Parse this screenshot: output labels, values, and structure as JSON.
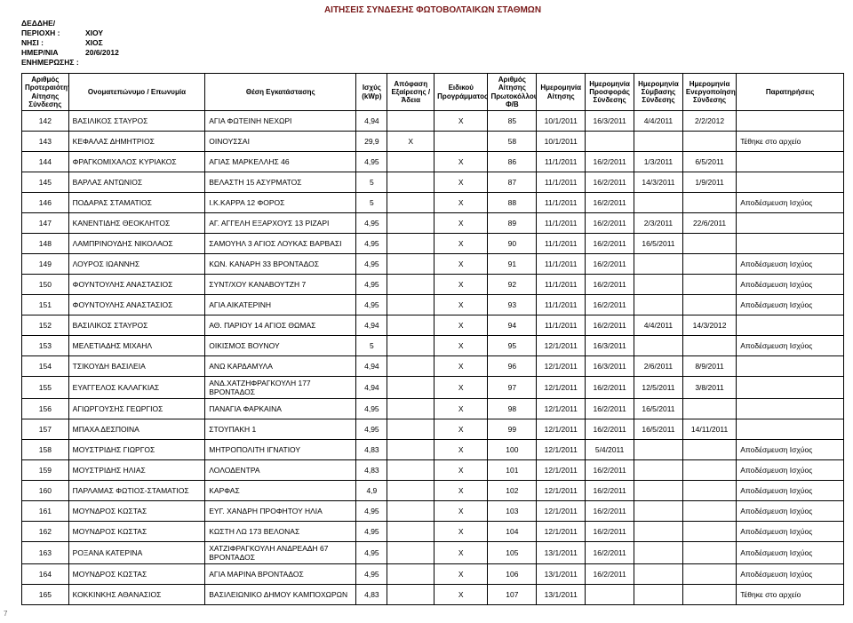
{
  "title": "ΑΙΤΗΣΕΙΣ ΣΥΝΔΕΣΗΣ ΦΩΤΟΒΟΛΤΑΙΚΩΝ ΣΤΑΘΜΩΝ",
  "meta": {
    "org_label": "ΔΕΔΔΗΕ/",
    "region_label": "ΠΕΡΙΟΧΗ :",
    "region_value": "ΧΙΟΥ",
    "island_label": "ΝΗΣΙ :",
    "island_value": "ΧΙΟΣ",
    "date_label": "ΗΜΕΡ/ΝΙΑ ΕΝΗΜΕΡΩΣΗΣ :",
    "date_value": "20/6/2012"
  },
  "headers": {
    "id": "Αριθμός Προτεραιότητας Αίτησης Σύνδεσης",
    "name": "Ονοματεπώνυμο / Επωνυμία",
    "loc": "Θέση Εγκατάστασης",
    "kwp": "Ισχύς (kWp)",
    "exc": "Απόφαση Εξαίρεσης / Άδεια",
    "prog": "Ειδικού Προγράμματος",
    "prot": "Αριθμός Αίτησης Πρωτοκόλλου Φ/Β",
    "d1": "Ημερομηνία Αίτησης",
    "d2": "Ημερομηνία Προσφοράς Σύνδεσης",
    "d3": "Ημερομηνία Σύμβασης Σύνδεσης",
    "d4": "Ημερομηνία Ενεργοποίησης Σύνδεσης",
    "note": "Παρατηρήσεις"
  },
  "rows": [
    {
      "id": "142",
      "name": "ΒΑΣΙΛΙΚΟΣ ΣΤΑΥΡΟΣ",
      "loc": "ΑΓΙΑ ΦΩΤΕΙΝΗ ΝΕΧΩΡΙ",
      "kwp": "4,94",
      "exc": "",
      "prog": "X",
      "prot": "85",
      "d1": "10/1/2011",
      "d2": "16/3/2011",
      "d3": "4/4/2011",
      "d4": "2/2/2012",
      "note": ""
    },
    {
      "id": "143",
      "name": "ΚΕΦΑΛΑΣ ΔΗΜΗΤΡΙΟΣ",
      "loc": "ΟΙΝΟΥΣΣΑΙ",
      "kwp": "29,9",
      "exc": "X",
      "prog": "",
      "prot": "58",
      "d1": "10/1/2011",
      "d2": "",
      "d3": "",
      "d4": "",
      "note": "Τέθηκε στο αρχείο"
    },
    {
      "id": "144",
      "name": "ΦΡΑΓΚΟΜΙΧΑΛΟΣ ΚΥΡΙΑΚΟΣ",
      "loc": "ΑΓΙΑΣ ΜΑΡΚΕΛΛΗΣ 46",
      "kwp": "4,95",
      "exc": "",
      "prog": "X",
      "prot": "86",
      "d1": "11/1/2011",
      "d2": "16/2/2011",
      "d3": "1/3/2011",
      "d4": "6/5/2011",
      "note": ""
    },
    {
      "id": "145",
      "name": "ΒΑΡΛΑΣ ΑΝΤΩΝΙΟΣ",
      "loc": "ΒΕΛΑΣΤΗ 15 ΑΣΥΡΜΑΤΟΣ",
      "kwp": "5",
      "exc": "",
      "prog": "X",
      "prot": "87",
      "d1": "11/1/2011",
      "d2": "16/2/2011",
      "d3": "14/3/2011",
      "d4": "1/9/2011",
      "note": ""
    },
    {
      "id": "146",
      "name": "ΠΟΔΑΡΑΣ ΣΤΑΜΑΤΙΟΣ",
      "loc": "Ι.Κ.ΚΑΡΡΑ 12 ΦΟΡΟΣ",
      "kwp": "5",
      "exc": "",
      "prog": "X",
      "prot": "88",
      "d1": "11/1/2011",
      "d2": "16/2/2011",
      "d3": "",
      "d4": "",
      "note": "Αποδέσμευση Ισχύος"
    },
    {
      "id": "147",
      "name": "ΚΑΝΕΝΤΙΔΗΣ ΘΕΟΚΛΗΤΟΣ",
      "loc": "ΑΓ. ΑΓΓΕΛΗ ΕΞΑΡΧΟΥΣ 13 ΡΙΖΑΡΙ",
      "kwp": "4,95",
      "exc": "",
      "prog": "X",
      "prot": "89",
      "d1": "11/1/2011",
      "d2": "16/2/2011",
      "d3": "2/3/2011",
      "d4": "22/6/2011",
      "note": ""
    },
    {
      "id": "148",
      "name": "ΛΑΜΠΡΙΝΟΥΔΗΣ ΝΙΚΟΛΑΟΣ",
      "loc": "ΣΑΜΟΥΗΛ 3 ΑΓΙΟΣ ΛΟΥΚΑΣ ΒΑΡΒΑΣΙ",
      "kwp": "4,95",
      "exc": "",
      "prog": "X",
      "prot": "90",
      "d1": "11/1/2011",
      "d2": "16/2/2011",
      "d3": "16/5/2011",
      "d4": "",
      "note": ""
    },
    {
      "id": "149",
      "name": "ΛΟΥΡΟΣ ΙΩΑΝΝΗΣ",
      "loc": "ΚΩΝ. ΚΑΝΑΡΗ 33 ΒΡΟΝΤΑΔΟΣ",
      "kwp": "4,95",
      "exc": "",
      "prog": "X",
      "prot": "91",
      "d1": "11/1/2011",
      "d2": "16/2/2011",
      "d3": "",
      "d4": "",
      "note": "Αποδέσμευση Ισχύος"
    },
    {
      "id": "150",
      "name": "ΦΟΥΝΤΟΥΛΗΣ ΑΝΑΣΤΑΣΙΟΣ",
      "loc": "ΣΥΝΤ/ΧΟΥ ΚΑΝΑΒΟΥΤΖΗ 7",
      "kwp": "4,95",
      "exc": "",
      "prog": "X",
      "prot": "92",
      "d1": "11/1/2011",
      "d2": "16/2/2011",
      "d3": "",
      "d4": "",
      "note": "Αποδέσμευση Ισχύος"
    },
    {
      "id": "151",
      "name": "ΦΟΥΝΤΟΥΛΗΣ ΑΝΑΣΤΑΣΙΟΣ",
      "loc": "ΑΓΙΑ ΑΙΚΑΤΕΡΙΝΗ",
      "kwp": "4,95",
      "exc": "",
      "prog": "X",
      "prot": "93",
      "d1": "11/1/2011",
      "d2": "16/2/2011",
      "d3": "",
      "d4": "",
      "note": "Αποδέσμευση Ισχύος"
    },
    {
      "id": "152",
      "name": "ΒΑΣΙΛΙΚΟΣ ΣΤΑΥΡΟΣ",
      "loc": "ΑΘ. ΠΑΡΙΟΥ 14 ΑΓΙΟΣ ΘΩΜΑΣ",
      "kwp": "4,94",
      "exc": "",
      "prog": "X",
      "prot": "94",
      "d1": "11/1/2011",
      "d2": "16/2/2011",
      "d3": "4/4/2011",
      "d4": "14/3/2012",
      "note": ""
    },
    {
      "id": "153",
      "name": "ΜΕΛΕΤΙΑΔΗΣ ΜΙΧΑΗΛ",
      "loc": "ΟΙΚΙΣΜΟΣ ΒΟΥΝΟΥ",
      "kwp": "5",
      "exc": "",
      "prog": "X",
      "prot": "95",
      "d1": "12/1/2011",
      "d2": "16/3/2011",
      "d3": "",
      "d4": "",
      "note": "Αποδέσμευση Ισχύος"
    },
    {
      "id": "154",
      "name": "ΤΣΙΚΟΥΔΗ ΒΑΣΙΛΕΙΑ",
      "loc": "ΑΝΩ ΚΑΡΔΑΜΥΛΑ",
      "kwp": "4,94",
      "exc": "",
      "prog": "X",
      "prot": "96",
      "d1": "12/1/2011",
      "d2": "16/3/2011",
      "d3": "2/6/2011",
      "d4": "8/9/2011",
      "note": ""
    },
    {
      "id": "155",
      "name": "ΕΥΑΓΓΕΛΟΣ ΚΑΛΑΓΚΙΑΣ",
      "loc": "ΑΝΔ.ΧΑΤΖΗΦΡΑΓΚΟΥΛΗ 177 ΒΡΟΝΤΑΔΟΣ",
      "kwp": "4,94",
      "exc": "",
      "prog": "X",
      "prot": "97",
      "d1": "12/1/2011",
      "d2": "16/2/2011",
      "d3": "12/5/2011",
      "d4": "3/8/2011",
      "note": ""
    },
    {
      "id": "156",
      "name": "ΑΓΙΩΡΓΟΥΣΗΣ ΓΕΩΡΓΙΟΣ",
      "loc": "ΠΑΝΑΓΙΑ ΦΑΡΚΑΙΝΑ",
      "kwp": "4,95",
      "exc": "",
      "prog": "X",
      "prot": "98",
      "d1": "12/1/2011",
      "d2": "16/2/2011",
      "d3": "16/5/2011",
      "d4": "",
      "note": ""
    },
    {
      "id": "157",
      "name": "ΜΠΑΧΑ ΔΕΣΠΟΙΝΑ",
      "loc": "ΣΤΟΥΠΑΚΗ 1",
      "kwp": "4,95",
      "exc": "",
      "prog": "X",
      "prot": "99",
      "d1": "12/1/2011",
      "d2": "16/2/2011",
      "d3": "16/5/2011",
      "d4": "14/11/2011",
      "note": ""
    },
    {
      "id": "158",
      "name": "ΜΟΥΣΤΡΙΔΗΣ ΓΙΩΡΓΟΣ",
      "loc": "ΜΗΤΡΟΠΟΛΙΤΗ ΙΓΝΑΤΙΟΥ",
      "kwp": "4,83",
      "exc": "",
      "prog": "X",
      "prot": "100",
      "d1": "12/1/2011",
      "d2": "5/4/2011",
      "d3": "",
      "d4": "",
      "note": "Αποδέσμευση Ισχύος"
    },
    {
      "id": "159",
      "name": "ΜΟΥΣΤΡΙΔΗΣ ΗΛΙΑΣ",
      "loc": "ΛΟΛΟΔΕΝΤΡΑ",
      "kwp": "4,83",
      "exc": "",
      "prog": "X",
      "prot": "101",
      "d1": "12/1/2011",
      "d2": "16/2/2011",
      "d3": "",
      "d4": "",
      "note": "Αποδέσμευση Ισχύος"
    },
    {
      "id": "160",
      "name": "ΠΑΡΛΑΜΑΣ ΦΩΤΙΟΣ-ΣΤΑΜΑΤΙΟΣ",
      "loc": "ΚΑΡΦΑΣ",
      "kwp": "4,9",
      "exc": "",
      "prog": "X",
      "prot": "102",
      "d1": "12/1/2011",
      "d2": "16/2/2011",
      "d3": "",
      "d4": "",
      "note": "Αποδέσμευση Ισχύος"
    },
    {
      "id": "161",
      "name": "ΜΟΥΝΔΡΟΣ ΚΩΣΤΑΣ",
      "loc": "ΕΥΓ. ΧΑΝΔΡΗ ΠΡΟΦΗΤΟΥ ΗΛΙΑ",
      "kwp": "4,95",
      "exc": "",
      "prog": "X",
      "prot": "103",
      "d1": "12/1/2011",
      "d2": "16/2/2011",
      "d3": "",
      "d4": "",
      "note": "Αποδέσμευση Ισχύος"
    },
    {
      "id": "162",
      "name": "ΜΟΥΝΔΡΟΣ ΚΩΣΤΑΣ",
      "loc": "ΚΩΣΤΗ ΛΩ 173 ΒΕΛΟΝΑΣ",
      "kwp": "4,95",
      "exc": "",
      "prog": "X",
      "prot": "104",
      "d1": "12/1/2011",
      "d2": "16/2/2011",
      "d3": "",
      "d4": "",
      "note": "Αποδέσμευση Ισχύος"
    },
    {
      "id": "163",
      "name": "ΡΟΞΑΝΑ ΚΑΤΕΡΙΝΑ",
      "loc": "ΧΑΤΖΙΦΡΑΓΚΟΥΛΗ ΑΝΔΡΕΑΔΗ 67 ΒΡΟΝΤΑΔΟΣ",
      "kwp": "4,95",
      "exc": "",
      "prog": "X",
      "prot": "105",
      "d1": "13/1/2011",
      "d2": "16/2/2011",
      "d3": "",
      "d4": "",
      "note": "Αποδέσμευση Ισχύος"
    },
    {
      "id": "164",
      "name": "ΜΟΥΝΔΡΟΣ ΚΩΣΤΑΣ",
      "loc": "ΑΓΙΑ ΜΑΡΙΝΑ ΒΡΟΝΤΑΔΟΣ",
      "kwp": "4,95",
      "exc": "",
      "prog": "X",
      "prot": "106",
      "d1": "13/1/2011",
      "d2": "16/2/2011",
      "d3": "",
      "d4": "",
      "note": "Αποδέσμευση Ισχύος"
    },
    {
      "id": "165",
      "name": "ΚΟΚΚΙΝΚΗΣ ΑΘΑΝΑΣΙΟΣ",
      "loc": "ΒΑΣΙΛΕΙΩΝΙΚΟ ΔΗΜΟΥ ΚΑΜΠΟΧΩΡΩΝ",
      "kwp": "4,83",
      "exc": "",
      "prog": "X",
      "prot": "107",
      "d1": "13/1/2011",
      "d2": "",
      "d3": "",
      "d4": "",
      "note": "Τέθηκε στο αρχείο"
    }
  ],
  "page_number": "7"
}
